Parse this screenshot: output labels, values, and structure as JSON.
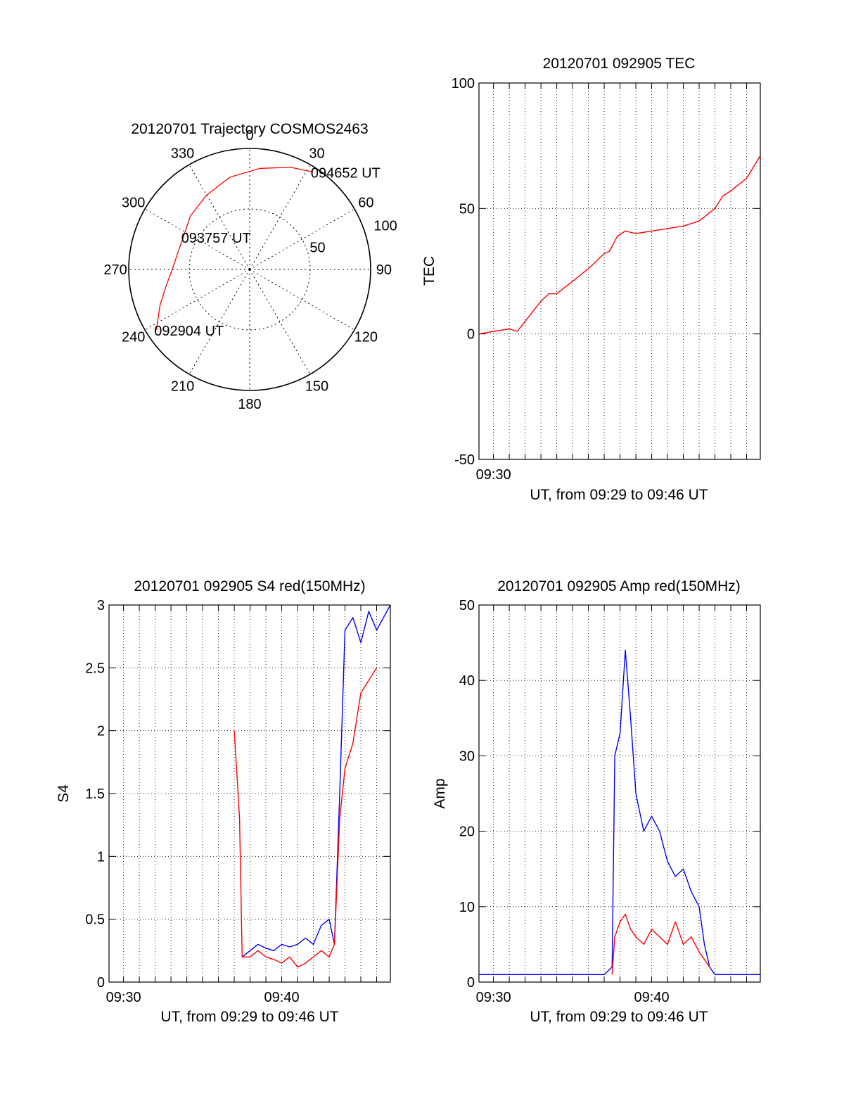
{
  "chart_data": [
    {
      "type": "polar",
      "title": "20120701 Trajectory COSMOS2463",
      "azimuth_labels": [
        "0",
        "30",
        "60",
        "90",
        "120",
        "150",
        "180",
        "210",
        "240",
        "270",
        "300",
        "330"
      ],
      "elevation_ring_labels": [
        "50",
        "100"
      ],
      "elevation_rings": [
        50,
        100
      ],
      "series": [
        {
          "color": "#ff0000",
          "points": [
            {
              "azimuth": 237,
              "zenith": 92
            },
            {
              "azimuth": 248,
              "zenith": 80
            },
            {
              "azimuth": 258,
              "zenith": 71
            },
            {
              "azimuth": 270,
              "zenith": 64
            },
            {
              "azimuth": 283,
              "zenith": 61
            },
            {
              "azimuth": 296,
              "zenith": 61
            },
            {
              "azimuth": 312,
              "zenith": 66
            },
            {
              "azimuth": 330,
              "zenith": 71
            },
            {
              "azimuth": 348,
              "zenith": 78
            },
            {
              "azimuth": 6,
              "zenith": 84
            },
            {
              "azimuth": 22,
              "zenith": 91
            },
            {
              "azimuth": 33,
              "zenith": 96
            }
          ]
        }
      ],
      "annotations": [
        {
          "text": "094652 UT",
          "azimuth": 33,
          "zenith": 96
        },
        {
          "text": "093757 UT",
          "azimuth": 296,
          "zenith": 61
        },
        {
          "text": "092904 UT",
          "azimuth": 237,
          "zenith": 92
        }
      ]
    },
    {
      "type": "line",
      "title": "20120701 092905 TEC",
      "xlabel": "UT, from 09:29 to 09:46 UT",
      "ylabel": "TEC",
      "xlim": [
        "09:29:05",
        "09:46:52"
      ],
      "ylim": [
        -50,
        100
      ],
      "x_ticks": [
        "09:30"
      ],
      "y_ticks": [
        "-50",
        "0",
        "50",
        "100"
      ],
      "grid": true,
      "series": [
        {
          "color": "#ff0000",
          "x": [
            "09:29:05",
            "09:30:00",
            "09:31:00",
            "09:31:30",
            "09:32:00",
            "09:33:00",
            "09:33:30",
            "09:34:00",
            "09:35:00",
            "09:36:00",
            "09:37:00",
            "09:37:20",
            "09:37:50",
            "09:38:20",
            "09:39:00",
            "09:40:00",
            "09:41:00",
            "09:42:00",
            "09:43:00",
            "09:44:00",
            "09:44:30",
            "09:45:00",
            "09:46:00",
            "09:46:52"
          ],
          "y": [
            0,
            1,
            2,
            1,
            5,
            13,
            16,
            16,
            21,
            26,
            32,
            33,
            39,
            41,
            40,
            41,
            42,
            43,
            45,
            50,
            55,
            57,
            62,
            71
          ]
        }
      ]
    },
    {
      "type": "line",
      "title": "20120701 092905 S4 red(150MHz)",
      "xlabel": "UT, from 09:29 to 09:46 UT",
      "ylabel": "S4",
      "xlim": [
        "09:29:05",
        "09:46:52"
      ],
      "ylim": [
        0,
        3
      ],
      "x_ticks": [
        "09:30",
        "09:40"
      ],
      "y_ticks": [
        "0",
        "0.5",
        "1",
        "1.5",
        "2",
        "2.5",
        "3"
      ],
      "grid": true,
      "series": [
        {
          "color": "#0000ff",
          "x": [
            "09:37:30",
            "09:38:00",
            "09:38:30",
            "09:39:00",
            "09:39:30",
            "09:40:00",
            "09:40:30",
            "09:41:00",
            "09:41:30",
            "09:42:00",
            "09:42:30",
            "09:43:00",
            "09:43:20",
            "09:43:40",
            "09:44:00",
            "09:44:30",
            "09:45:00",
            "09:45:30",
            "09:46:00",
            "09:46:52"
          ],
          "y": [
            0.2,
            0.25,
            0.3,
            0.27,
            0.25,
            0.3,
            0.28,
            0.3,
            0.35,
            0.3,
            0.45,
            0.5,
            0.3,
            1.5,
            2.8,
            2.9,
            2.7,
            2.95,
            2.8,
            3.0
          ]
        },
        {
          "color": "#ff0000",
          "x": [
            "09:37:00",
            "09:37:20",
            "09:37:30",
            "09:38:00",
            "09:38:30",
            "09:39:00",
            "09:39:30",
            "09:40:00",
            "09:40:30",
            "09:41:00",
            "09:41:30",
            "09:42:00",
            "09:42:30",
            "09:43:00",
            "09:43:20",
            "09:43:40",
            "09:44:00",
            "09:44:30",
            "09:45:00",
            "09:46:00"
          ],
          "y": [
            2.0,
            1.3,
            0.2,
            0.2,
            0.25,
            0.2,
            0.18,
            0.15,
            0.2,
            0.12,
            0.15,
            0.2,
            0.25,
            0.2,
            0.3,
            1.3,
            1.7,
            1.9,
            2.3,
            2.5
          ]
        }
      ]
    },
    {
      "type": "line",
      "title": "20120701 092905 Amp red(150MHz)",
      "xlabel": "UT, from 09:29 to 09:46 UT",
      "ylabel": "Amp",
      "xlim": [
        "09:29:05",
        "09:46:52"
      ],
      "ylim": [
        0,
        50
      ],
      "x_ticks": [
        "09:30",
        "09:40"
      ],
      "y_ticks": [
        "0",
        "10",
        "20",
        "30",
        "40",
        "50"
      ],
      "grid": true,
      "series": [
        {
          "color": "#0000ff",
          "x": [
            "09:29:05",
            "09:31:00",
            "09:33:00",
            "09:35:00",
            "09:37:00",
            "09:37:30",
            "09:37:40",
            "09:38:00",
            "09:38:20",
            "09:38:40",
            "09:39:00",
            "09:39:30",
            "09:40:00",
            "09:40:30",
            "09:41:00",
            "09:41:30",
            "09:42:00",
            "09:42:30",
            "09:43:00",
            "09:43:20",
            "09:43:40",
            "09:44:00",
            "09:45:00",
            "09:46:52"
          ],
          "y": [
            1,
            1,
            1,
            1,
            1,
            2,
            30,
            33,
            44,
            35,
            25,
            20,
            22,
            20,
            16,
            14,
            15,
            12,
            10,
            5,
            2,
            1,
            1,
            1
          ]
        },
        {
          "color": "#ff0000",
          "x": [
            "09:37:30",
            "09:37:40",
            "09:38:00",
            "09:38:20",
            "09:38:40",
            "09:39:00",
            "09:39:30",
            "09:40:00",
            "09:40:30",
            "09:41:00",
            "09:41:30",
            "09:42:00",
            "09:42:30",
            "09:43:00",
            "09:43:20",
            "09:43:40"
          ],
          "y": [
            1,
            6,
            8,
            9,
            7,
            6,
            5,
            7,
            6,
            5,
            8,
            5,
            6,
            4,
            3,
            2
          ]
        }
      ]
    }
  ]
}
